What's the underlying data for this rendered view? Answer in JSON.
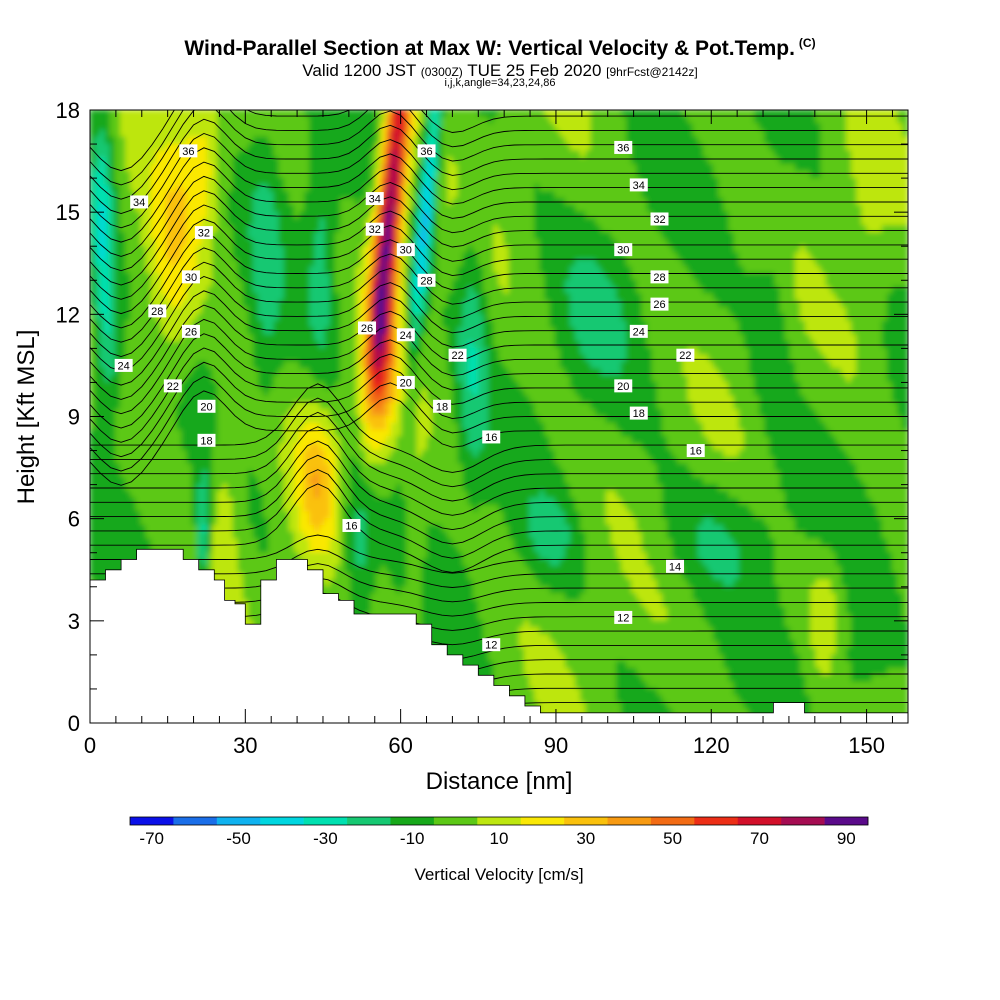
{
  "header": {
    "title": "Wind-Parallel Section at Max W: Vertical Velocity & Pot.Temp.",
    "copyright": "(C)",
    "valid_prefix": "Valid 1200 JST",
    "valid_utc": "(0300Z)",
    "valid_date": "TUE 25 Feb 2020",
    "forecast": "[9hrFcst@2142z]",
    "params": "i,j,k,angle=34,23,24,86"
  },
  "chart_data": {
    "type": "heatmap",
    "xlabel": "Distance [nm]",
    "ylabel": "Height [Kft MSL]",
    "xlim": [
      0,
      158
    ],
    "ylim": [
      0,
      18
    ],
    "x_ticks": [
      0,
      30,
      60,
      90,
      120,
      150
    ],
    "y_ticks": [
      0,
      3,
      6,
      9,
      12,
      15,
      18
    ],
    "colorbar": {
      "title": "Vertical Velocity [cm/s]",
      "labels": [
        "-70",
        "-50",
        "-30",
        "-10",
        "10",
        "30",
        "50",
        "70",
        "90"
      ],
      "bounds": [
        -70,
        -60,
        -50,
        -40,
        -30,
        -20,
        -10,
        0,
        10,
        20,
        30,
        40,
        50,
        60,
        70,
        80,
        90
      ],
      "colors": [
        "#0a10e8",
        "#1a6ee8",
        "#0fb2f0",
        "#00d6e0",
        "#00e0b0",
        "#16c872",
        "#17a81a",
        "#5cc816",
        "#bde610",
        "#fae806",
        "#fac10c",
        "#f79a12",
        "#f26b14",
        "#ec2e16",
        "#d2102a",
        "#a50c52",
        "#5a0a8a"
      ]
    },
    "terrain_kft": [
      [
        0,
        4.2
      ],
      [
        3,
        4.2
      ],
      [
        3,
        4.5
      ],
      [
        6,
        4.5
      ],
      [
        6,
        4.8
      ],
      [
        9,
        4.8
      ],
      [
        9,
        5.1
      ],
      [
        18,
        5.1
      ],
      [
        18,
        4.8
      ],
      [
        21,
        4.8
      ],
      [
        21,
        4.5
      ],
      [
        24,
        4.5
      ],
      [
        24,
        4.2
      ],
      [
        26,
        4.2
      ],
      [
        26,
        3.6
      ],
      [
        28,
        3.6
      ],
      [
        28,
        3.5
      ],
      [
        30,
        3.5
      ],
      [
        30,
        2.9
      ],
      [
        33,
        2.9
      ],
      [
        33,
        4.2
      ],
      [
        36,
        4.2
      ],
      [
        36,
        4.8
      ],
      [
        42,
        4.8
      ],
      [
        42,
        4.5
      ],
      [
        45,
        4.5
      ],
      [
        45,
        3.8
      ],
      [
        48,
        3.8
      ],
      [
        48,
        3.6
      ],
      [
        51,
        3.6
      ],
      [
        51,
        3.2
      ],
      [
        54,
        3.2
      ],
      [
        54,
        3.2
      ],
      [
        60,
        3.2
      ],
      [
        60,
        3.2
      ],
      [
        63,
        3.2
      ],
      [
        63,
        2.9
      ],
      [
        66,
        2.9
      ],
      [
        66,
        2.3
      ],
      [
        69,
        2.3
      ],
      [
        69,
        2.0
      ],
      [
        72,
        2.0
      ],
      [
        72,
        1.7
      ],
      [
        75,
        1.7
      ],
      [
        75,
        1.4
      ],
      [
        78,
        1.4
      ],
      [
        78,
        1.1
      ],
      [
        81,
        1.1
      ],
      [
        81,
        0.8
      ],
      [
        84,
        0.8
      ],
      [
        84,
        0.5
      ],
      [
        87,
        0.5
      ],
      [
        87,
        0.3
      ],
      [
        132,
        0.3
      ],
      [
        132,
        0.6
      ],
      [
        138,
        0.6
      ],
      [
        138,
        0.3
      ],
      [
        158,
        0.3
      ]
    ],
    "contour_labels": [
      {
        "text": "36",
        "x": 19,
        "y": 16.8
      },
      {
        "text": "34",
        "x": 9.5,
        "y": 15.3
      },
      {
        "text": "32",
        "x": 22,
        "y": 14.4
      },
      {
        "text": "30",
        "x": 19.5,
        "y": 13.1
      },
      {
        "text": "28",
        "x": 13,
        "y": 12.1
      },
      {
        "text": "26",
        "x": 19.5,
        "y": 11.5
      },
      {
        "text": "24",
        "x": 6.5,
        "y": 10.5
      },
      {
        "text": "22",
        "x": 16,
        "y": 9.9
      },
      {
        "text": "20",
        "x": 22.5,
        "y": 9.3
      },
      {
        "text": "18",
        "x": 22.5,
        "y": 8.3
      },
      {
        "text": "36",
        "x": 65,
        "y": 16.8
      },
      {
        "text": "34",
        "x": 55,
        "y": 15.4
      },
      {
        "text": "32",
        "x": 55,
        "y": 14.5
      },
      {
        "text": "30",
        "x": 61,
        "y": 13.9
      },
      {
        "text": "28",
        "x": 65,
        "y": 13.0
      },
      {
        "text": "26",
        "x": 53.5,
        "y": 11.6
      },
      {
        "text": "24",
        "x": 61,
        "y": 11.4
      },
      {
        "text": "22",
        "x": 71,
        "y": 10.8
      },
      {
        "text": "20",
        "x": 61,
        "y": 10.0
      },
      {
        "text": "18",
        "x": 68,
        "y": 9.3
      },
      {
        "text": "16",
        "x": 77.5,
        "y": 8.4
      },
      {
        "text": "16",
        "x": 50.5,
        "y": 5.8
      },
      {
        "text": "12",
        "x": 77.5,
        "y": 2.3
      },
      {
        "text": "36",
        "x": 103,
        "y": 16.9
      },
      {
        "text": "34",
        "x": 106,
        "y": 15.8
      },
      {
        "text": "32",
        "x": 110,
        "y": 14.8
      },
      {
        "text": "30",
        "x": 103,
        "y": 13.9
      },
      {
        "text": "28",
        "x": 110,
        "y": 13.1
      },
      {
        "text": "26",
        "x": 110,
        "y": 12.3
      },
      {
        "text": "24",
        "x": 106,
        "y": 11.5
      },
      {
        "text": "22",
        "x": 115,
        "y": 10.8
      },
      {
        "text": "20",
        "x": 103,
        "y": 9.9
      },
      {
        "text": "18",
        "x": 106,
        "y": 9.1
      },
      {
        "text": "16",
        "x": 117,
        "y": 8.0
      },
      {
        "text": "14",
        "x": 113,
        "y": 4.6
      },
      {
        "text": "12",
        "x": 103,
        "y": 3.1
      }
    ]
  }
}
